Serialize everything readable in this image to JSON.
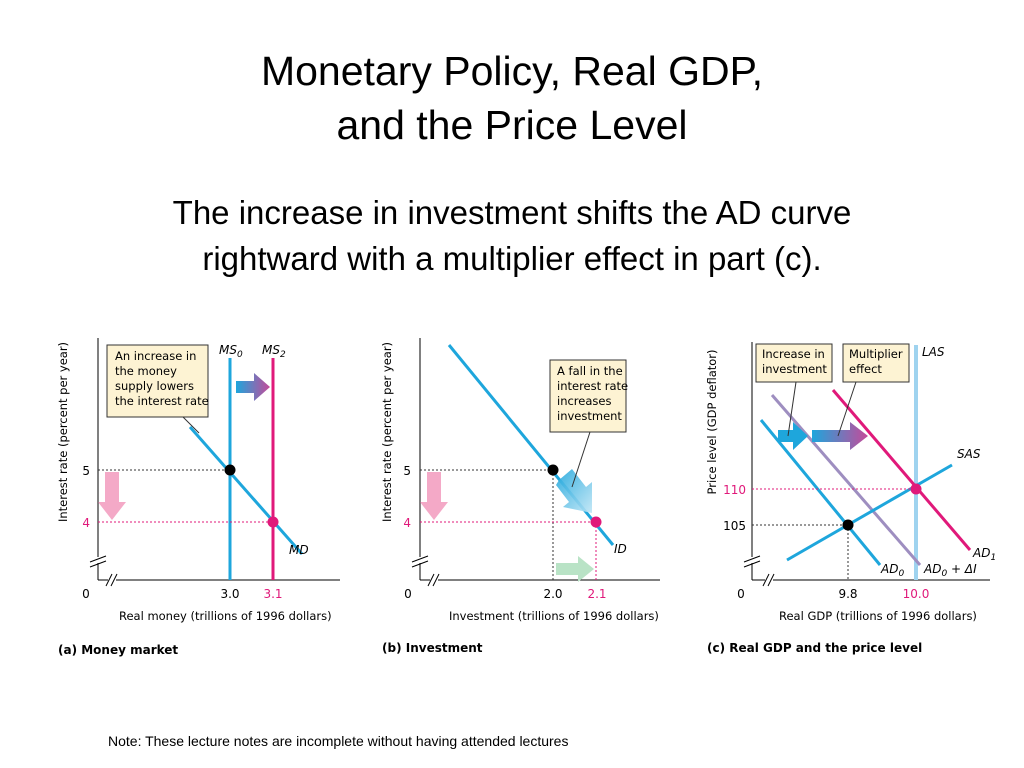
{
  "slide": {
    "title_line1": "Monetary Policy, Real GDP,",
    "title_line2": "and the Price Level",
    "subtitle_line1": "The increase in investment shifts the AD curve",
    "subtitle_line2": "rightward with a multiplier effect in part (c).",
    "note": "Note: These lecture notes are incomplete without having attended lectures"
  },
  "colors": {
    "blue": "#1ea6dc",
    "magenta": "#e0197a",
    "purple": "#9e8ec0",
    "light_blue": "#9fd3ef",
    "pink_arrow": "#f4a9c7",
    "green_arrow": "#b9e3c6",
    "box_fill": "#fdf3d3"
  },
  "chart_data": [
    {
      "type": "line",
      "panel_label": "(a) Money market",
      "xlabel": "Real money (trillions of 1996 dollars)",
      "ylabel": "Interest rate (percent per year)",
      "origin_label": "0",
      "x_ticks": [
        "3.0",
        "3.1"
      ],
      "y_ticks": [
        "5",
        "4"
      ],
      "curves": [
        {
          "name": "MS0",
          "label_main": "MS",
          "label_sub": "0",
          "kind": "vertical",
          "x": 3.0
        },
        {
          "name": "MS2",
          "label_main": "MS",
          "label_sub": "2",
          "kind": "vertical",
          "x": 3.1
        },
        {
          "name": "MD",
          "label_main": "MD",
          "label_sub": "",
          "kind": "downward",
          "points": [
            [
              3.0,
              5
            ],
            [
              3.1,
              4
            ]
          ]
        }
      ],
      "equilibria": [
        {
          "x": 3.0,
          "y": 5
        },
        {
          "x": 3.1,
          "y": 4
        }
      ],
      "annotation_lines": [
        "An increase in",
        "the money",
        "supply lowers",
        "the interest rate"
      ]
    },
    {
      "type": "line",
      "panel_label": "(b) Investment",
      "xlabel": "Investment (trillions of 1996 dollars)",
      "ylabel": "Interest rate (percent per year)",
      "origin_label": "0",
      "x_ticks": [
        "2.0",
        "2.1"
      ],
      "y_ticks": [
        "5",
        "4"
      ],
      "curves": [
        {
          "name": "ID",
          "label_main": "ID",
          "label_sub": "",
          "kind": "downward",
          "points": [
            [
              2.0,
              5
            ],
            [
              2.1,
              4
            ]
          ]
        }
      ],
      "equilibria": [
        {
          "x": 2.0,
          "y": 5
        },
        {
          "x": 2.1,
          "y": 4
        }
      ],
      "annotation_lines": [
        "A fall in the",
        "interest rate",
        "increases",
        "investment"
      ]
    },
    {
      "type": "line",
      "panel_label": "(c) Real GDP and the price level",
      "xlabel": "Real GDP (trillions of 1996 dollars)",
      "ylabel": "Price level (GDP deflator)",
      "origin_label": "0",
      "x_ticks": [
        "9.8",
        "10.0"
      ],
      "y_ticks": [
        "110",
        "105"
      ],
      "curves": [
        {
          "name": "LAS",
          "label_main": "LAS",
          "label_sub": "",
          "kind": "vertical",
          "x": 10.0
        },
        {
          "name": "SAS",
          "label_main": "SAS",
          "label_sub": "",
          "kind": "upward",
          "points": [
            [
              9.8,
              105
            ],
            [
              10.0,
              110
            ]
          ]
        },
        {
          "name": "AD0",
          "label_main": "AD",
          "label_sub": "0",
          "kind": "downward",
          "points": [
            [
              9.8,
              105
            ]
          ]
        },
        {
          "name": "AD0+ΔI",
          "label_main": "AD",
          "label_sub": "0",
          "label_tail": " + ΔI",
          "kind": "downward"
        },
        {
          "name": "AD1",
          "label_main": "AD",
          "label_sub": "1",
          "kind": "downward",
          "points": [
            [
              10.0,
              110
            ]
          ]
        }
      ],
      "equilibria": [
        {
          "x": 9.8,
          "y": 105
        },
        {
          "x": 10.0,
          "y": 110
        }
      ],
      "annotations": [
        {
          "lines": [
            "Increase in",
            "investment"
          ]
        },
        {
          "lines": [
            "Multiplier",
            "effect"
          ]
        }
      ]
    }
  ]
}
